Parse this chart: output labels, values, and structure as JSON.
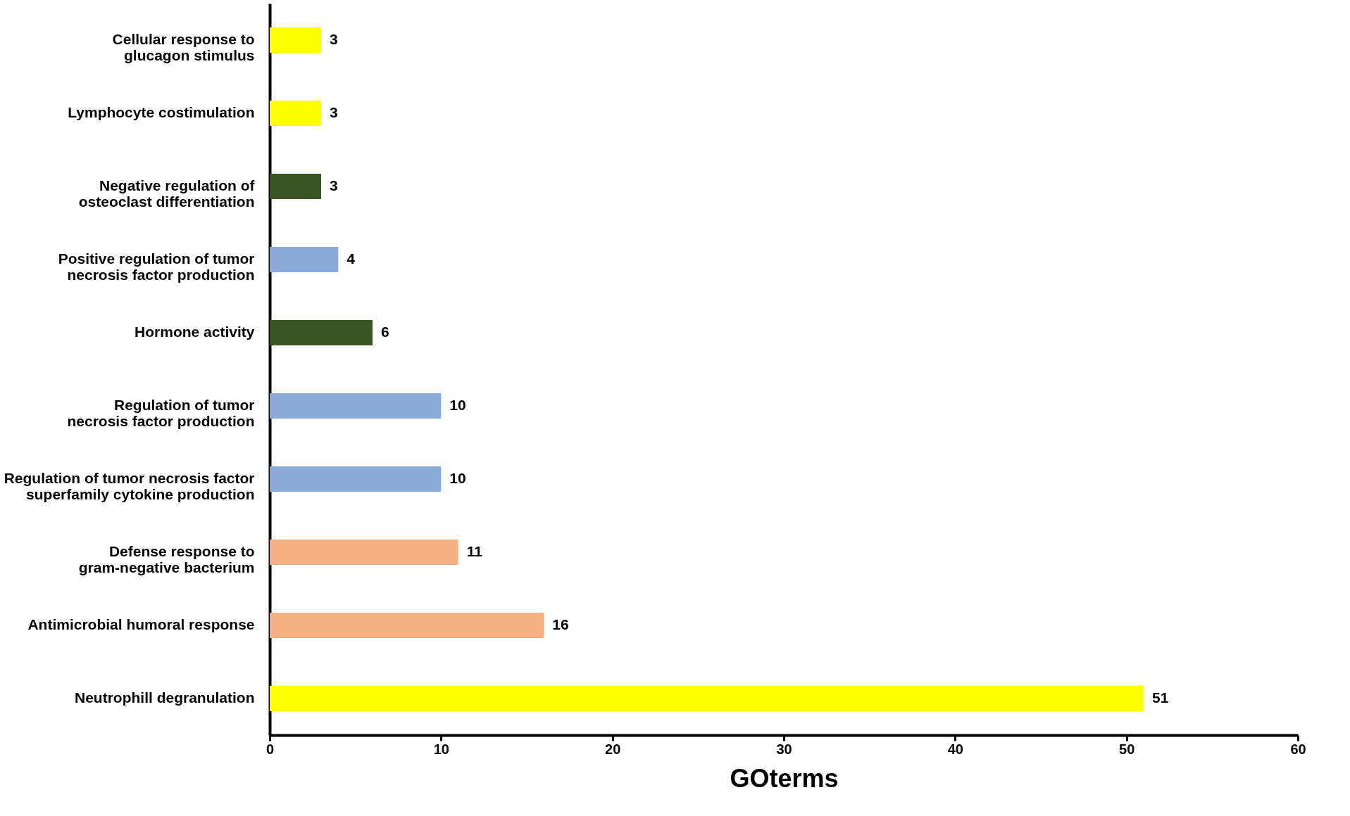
{
  "chart_data": {
    "type": "bar",
    "orientation": "horizontal",
    "xlabel": "GOterms",
    "categories": [
      "Cellular response to glucagon stimulus",
      "Lymphocyte costimulation",
      "Negative regulation of osteoclast differentiation",
      "Positive regulation of tumor necrosis factor production",
      "Hormone activity",
      "Regulation of tumor necrosis factor production",
      "Regulation of tumor necrosis factor superfamily cytokine production",
      "Defense response to gram-negative bacterium",
      "Antimicrobial humoral response",
      "Neutrophill degranulation"
    ],
    "values": [
      3,
      3,
      3,
      4,
      6,
      10,
      10,
      11,
      16,
      51
    ],
    "colors": [
      "#ffff00",
      "#ffff00",
      "#375623",
      "#8eaadb",
      "#375623",
      "#8eaadb",
      "#8eaadb",
      "#f4b183",
      "#f4b183",
      "#ffff00"
    ],
    "xlim": [
      0,
      60
    ],
    "xticks": [
      0,
      10,
      20,
      30,
      40,
      50,
      60
    ],
    "data_labels": true,
    "grid": false
  }
}
